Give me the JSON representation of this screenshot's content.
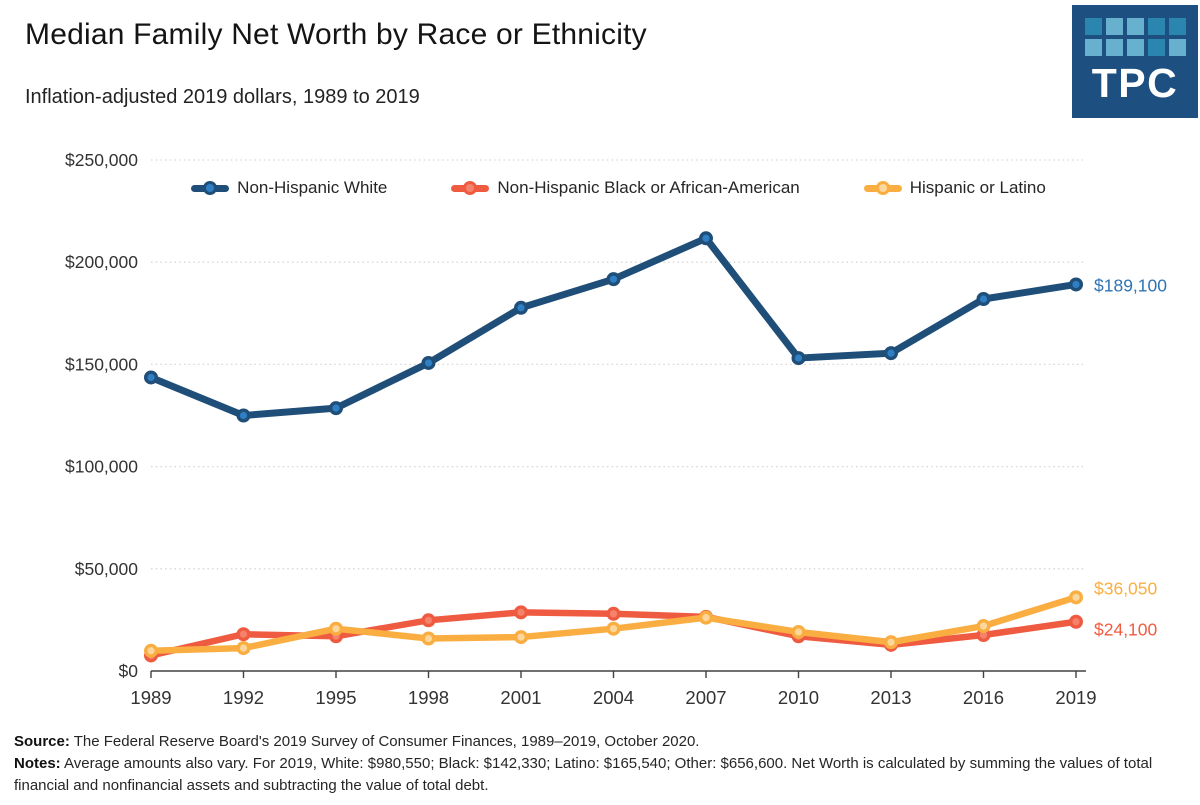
{
  "header": {
    "title": "Median Family Net Worth by Race or Ethnicity",
    "subtitle": "Inflation-adjusted 2019 dollars, 1989 to 2019"
  },
  "logo": {
    "text": "TPC",
    "background": "#1d4f80",
    "square_colors": {
      "light": "#67b1ce",
      "mid": "#2a86ae"
    },
    "grid_pattern": [
      "mid",
      "light",
      "light",
      "mid",
      "mid",
      "light",
      "light",
      "light",
      "mid",
      "light"
    ]
  },
  "chart_data": {
    "type": "line",
    "title": "Median Family Net Worth by Race or Ethnicity",
    "subtitle": "Inflation-adjusted 2019 dollars, 1989 to 2019",
    "x_labels": [
      "1989",
      "1992",
      "1995",
      "1998",
      "2001",
      "2004",
      "2007",
      "2010",
      "2013",
      "2016",
      "2019"
    ],
    "ylim": [
      0,
      250000
    ],
    "ytick_step": 50000,
    "ytick_labels": [
      "$0",
      "$50,000",
      "$100,000",
      "$150,000",
      "$200,000",
      "$250,000"
    ],
    "grid": "dotted-horizontal",
    "legend_position": "top-inside",
    "series": [
      {
        "name": "Non-Hispanic White",
        "color": "#1f4e79",
        "marker_fill": "#2f7fc4",
        "label_color": "#2e74b5",
        "end_label": "$189,100",
        "end_label_dy": 1,
        "line_width": 7,
        "values": [
          143600,
          125000,
          128600,
          150700,
          177700,
          191700,
          211700,
          153100,
          155500,
          182000,
          189100
        ]
      },
      {
        "name": "Non-Hispanic Black or African-American",
        "color": "#ef5b41",
        "marker_fill": "#f5836b",
        "label_color": "#f15b40",
        "end_label": "$24,100",
        "end_label_dy": 8,
        "line_width": 6.5,
        "values": [
          7600,
          18000,
          17000,
          24800,
          28700,
          28000,
          26500,
          17000,
          12800,
          17600,
          24100
        ]
      },
      {
        "name": "Hispanic or Latino",
        "color": "#faae42",
        "marker_fill": "#fcd79b",
        "label_color": "#faae42",
        "end_label": "$36,050",
        "end_label_dy": -9,
        "line_width": 6.5,
        "values": [
          9900,
          11200,
          20700,
          15900,
          16600,
          20700,
          26100,
          19100,
          14100,
          22000,
          36050
        ]
      }
    ]
  },
  "footer": {
    "source_label": "Source:",
    "source_text": " The Federal Reserve Board's 2019 Survey of Consumer Finances, 1989–2019, October 2020.",
    "notes_label": "Notes:",
    "notes_text": " Average amounts also vary. For 2019, White: $980,550;  Black: $142,330;  Latino: $165,540;  Other: $656,600.  Net Worth is calculated by summing the values of total financial and nonfinancial assets and subtracting the value of total debt."
  }
}
